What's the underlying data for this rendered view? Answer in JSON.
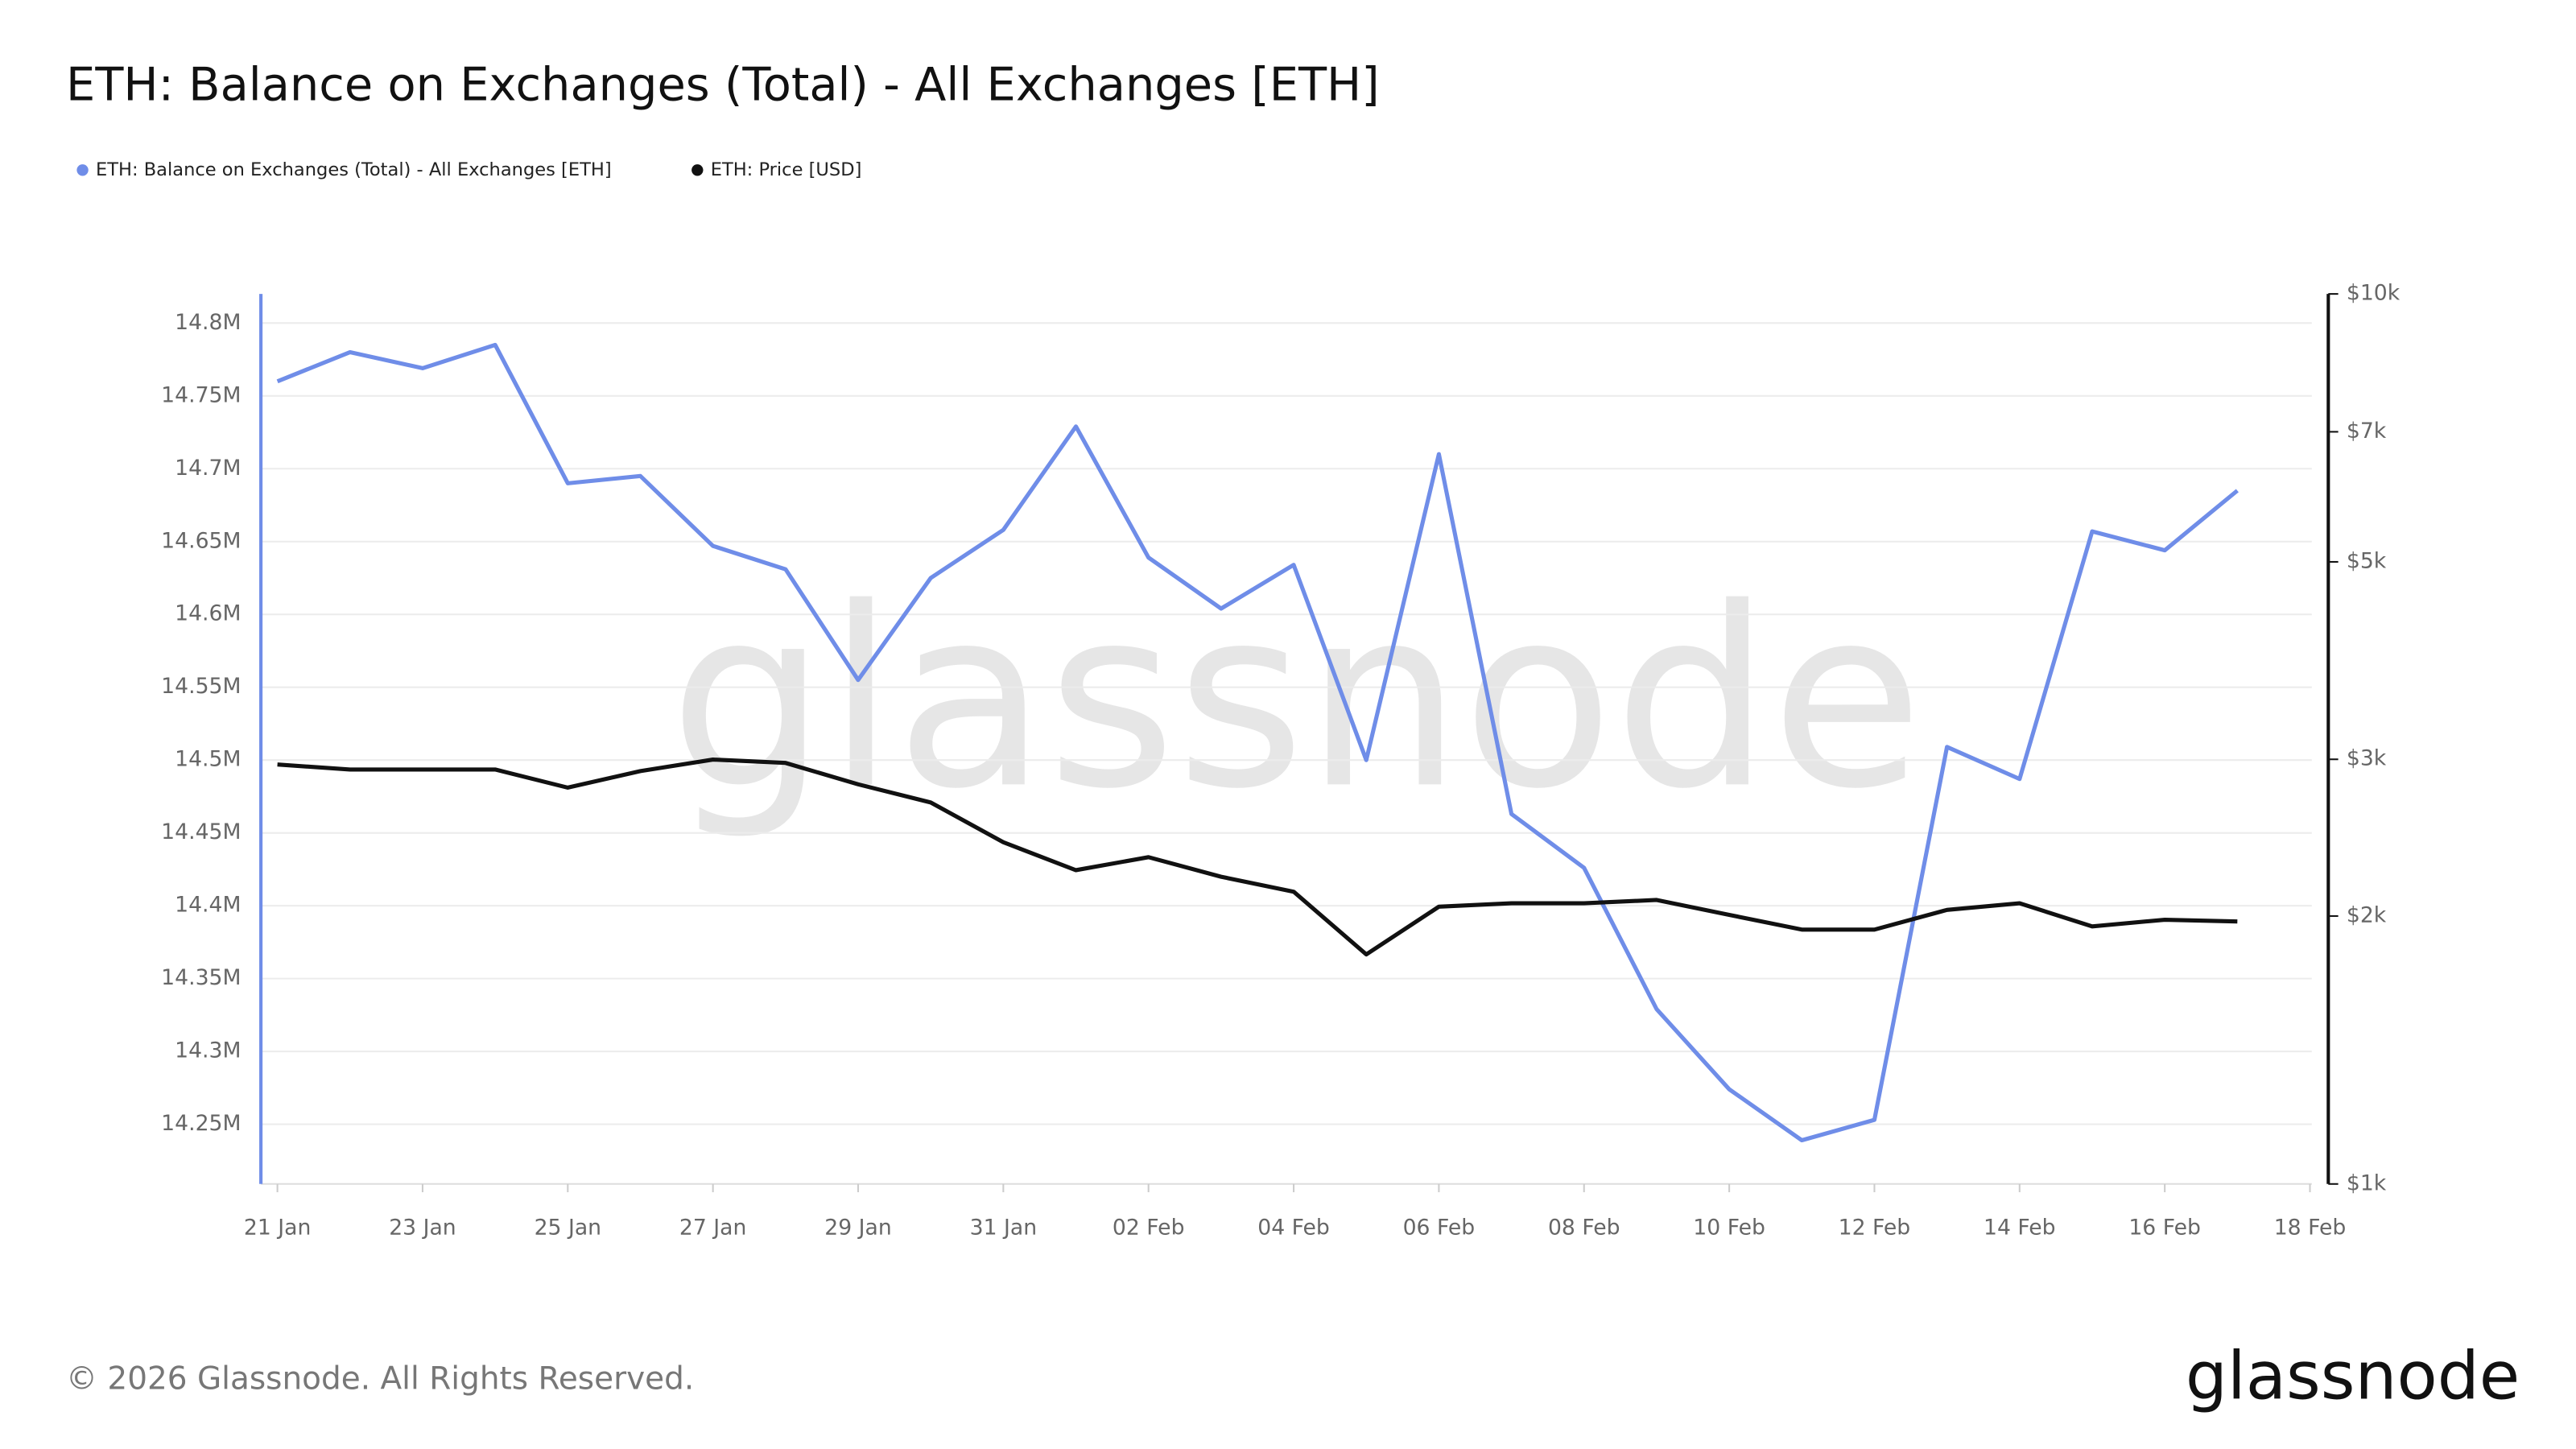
{
  "chart_data": {
    "type": "line",
    "title": "ETH: Balance on Exchanges (Total) - All Exchanges [ETH]",
    "watermark": "glassnode",
    "footer": "© 2026 Glassnode. All Rights Reserved.",
    "logo": "glassnode",
    "x": [
      "21 Jan",
      "22 Jan",
      "23 Jan",
      "24 Jan",
      "25 Jan",
      "26 Jan",
      "27 Jan",
      "28 Jan",
      "29 Jan",
      "30 Jan",
      "31 Jan",
      "01 Feb",
      "02 Feb",
      "03 Feb",
      "04 Feb",
      "05 Feb",
      "06 Feb",
      "07 Feb",
      "08 Feb",
      "09 Feb",
      "10 Feb",
      "11 Feb",
      "12 Feb",
      "13 Feb",
      "14 Feb",
      "15 Feb",
      "16 Feb",
      "17 Feb"
    ],
    "xticks": [
      "21 Jan",
      "23 Jan",
      "25 Jan",
      "27 Jan",
      "29 Jan",
      "31 Jan",
      "02 Feb",
      "04 Feb",
      "06 Feb",
      "08 Feb",
      "10 Feb",
      "12 Feb",
      "14 Feb",
      "16 Feb",
      "18 Feb"
    ],
    "ylim": [
      14209000,
      14820000
    ],
    "yticks": [
      {
        "value": 14250000,
        "label": "14.25M"
      },
      {
        "value": 14300000,
        "label": "14.3M"
      },
      {
        "value": 14350000,
        "label": "14.35M"
      },
      {
        "value": 14400000,
        "label": "14.4M"
      },
      {
        "value": 14450000,
        "label": "14.45M"
      },
      {
        "value": 14500000,
        "label": "14.5M"
      },
      {
        "value": 14550000,
        "label": "14.55M"
      },
      {
        "value": 14600000,
        "label": "14.6M"
      },
      {
        "value": 14650000,
        "label": "14.65M"
      },
      {
        "value": 14700000,
        "label": "14.7M"
      },
      {
        "value": 14750000,
        "label": "14.75M"
      },
      {
        "value": 14800000,
        "label": "14.8M"
      }
    ],
    "y2lim": [
      1000,
      10000
    ],
    "y2scale": "log",
    "y2ticks": [
      {
        "value": 1000,
        "label": "$1k"
      },
      {
        "value": 2000,
        "label": "$2k"
      },
      {
        "value": 3000,
        "label": "$3k"
      },
      {
        "value": 5000,
        "label": "$5k"
      },
      {
        "value": 7000,
        "label": "$7k"
      },
      {
        "value": 10000,
        "label": "$10k"
      }
    ],
    "grid": true,
    "series": [
      {
        "name": "ETH: Balance on Exchanges (Total) - All Exchanges [ETH]",
        "color": "#6f8de8",
        "axis": "y",
        "values": [
          14760000,
          14780000,
          14769000,
          14785000,
          14690000,
          14695000,
          14647000,
          14631000,
          14555000,
          14625000,
          14658000,
          14729000,
          14639000,
          14604000,
          14634000,
          14500000,
          14710000,
          14463000,
          14426000,
          14329000,
          14274000,
          14239000,
          14253000,
          14509000,
          14487000,
          14657000,
          14644000,
          14685000
        ]
      },
      {
        "name": "ETH: Price [USD]",
        "color": "#111111",
        "axis": "y2",
        "values": [
          2960,
          2922,
          2922,
          2922,
          2788,
          2910,
          2998,
          2972,
          2812,
          2683,
          2421,
          2252,
          2329,
          2214,
          2130,
          1811,
          2049,
          2067,
          2067,
          2085,
          2006,
          1931,
          1931,
          2032,
          2067,
          1947,
          1981,
          1972
        ]
      }
    ]
  }
}
